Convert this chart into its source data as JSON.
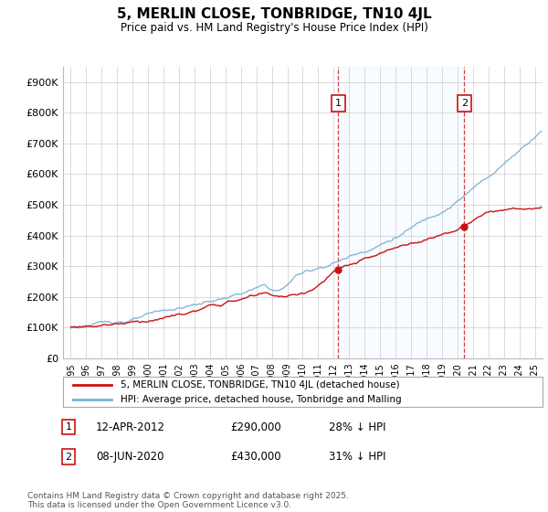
{
  "title": "5, MERLIN CLOSE, TONBRIDGE, TN10 4JL",
  "subtitle": "Price paid vs. HM Land Registry's House Price Index (HPI)",
  "title_fontsize": 11,
  "subtitle_fontsize": 9,
  "ylim": [
    0,
    950000
  ],
  "yticks": [
    0,
    100000,
    200000,
    300000,
    400000,
    500000,
    600000,
    700000,
    800000,
    900000
  ],
  "ytick_labels": [
    "£0",
    "£100K",
    "£200K",
    "£300K",
    "£400K",
    "£500K",
    "£600K",
    "£700K",
    "£800K",
    "£900K"
  ],
  "hpi_color": "#7ab0d4",
  "price_color": "#cc1111",
  "legend1": "5, MERLIN CLOSE, TONBRIDGE, TN10 4JL (detached house)",
  "legend2": "HPI: Average price, detached house, Tonbridge and Malling",
  "marker1_year": 2012.29,
  "marker2_year": 2020.45,
  "sale1_price": 290000,
  "sale2_price": 430000,
  "footer": "Contains HM Land Registry data © Crown copyright and database right 2025.\nThis data is licensed under the Open Government Licence v3.0.",
  "background_color": "#ffffff",
  "shade_color": "#ddeeff",
  "xmin": 1995,
  "xmax": 2025.5
}
